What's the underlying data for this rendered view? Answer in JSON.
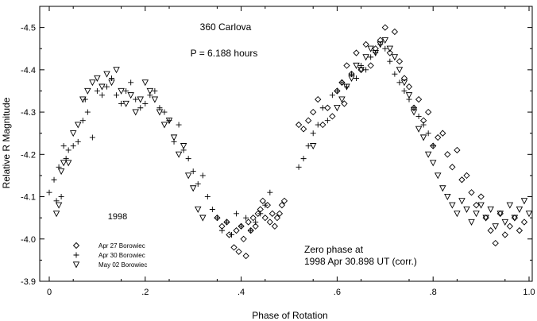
{
  "chart_data": {
    "type": "scatter",
    "title": "360 Carlova",
    "period_label": "P = 6.188 hours",
    "xlabel": "Phase of Rotation",
    "ylabel": "Relative R Magnitude",
    "xlim": [
      0,
      1
    ],
    "ylim": [
      -3.9,
      -4.55
    ],
    "x_ticks": [
      0,
      0.2,
      0.4,
      0.6,
      0.8,
      1.0
    ],
    "x_tick_labels": [
      "0",
      ".2",
      ".4",
      ".6",
      ".8",
      "1.0"
    ],
    "y_ticks": [
      -3.9,
      -4.0,
      -4.1,
      -4.2,
      -4.3,
      -4.4,
      -4.5
    ],
    "y_tick_labels": [
      "-3.9",
      "-4.0",
      "-4.1",
      "-4.2",
      "-4.3",
      "-4.4",
      "-4.5"
    ],
    "legend_title": "1998",
    "legend_placement": "bottom-left",
    "zero_phase_line1": "Zero phase at",
    "zero_phase_line2": "1998 Apr 30.898 UT (corr.)",
    "series": [
      {
        "name": "Apr 27 Borowiec",
        "marker": "diamond",
        "x": [
          0.35,
          0.36,
          0.37,
          0.375,
          0.385,
          0.39,
          0.395,
          0.4,
          0.405,
          0.41,
          0.415,
          0.42,
          0.425,
          0.43,
          0.435,
          0.44,
          0.445,
          0.45,
          0.455,
          0.46,
          0.465,
          0.47,
          0.475,
          0.48,
          0.485,
          0.49,
          0.52,
          0.53,
          0.54,
          0.55,
          0.56,
          0.57,
          0.58,
          0.59,
          0.6,
          0.61,
          0.615,
          0.62,
          0.63,
          0.64,
          0.65,
          0.66,
          0.67,
          0.68,
          0.69,
          0.7,
          0.71,
          0.72,
          0.73,
          0.74,
          0.75,
          0.76,
          0.77,
          0.78,
          0.79,
          0.8,
          0.81,
          0.82,
          0.83,
          0.84,
          0.85,
          0.86,
          0.87,
          0.88,
          0.89,
          0.9,
          0.91,
          0.92,
          0.93,
          0.94,
          0.95,
          0.96,
          0.97,
          0.98,
          0.99
        ],
        "y": [
          -4.05,
          -4.03,
          -4.04,
          -4.01,
          -3.98,
          -4.02,
          -3.97,
          -4.03,
          -4.0,
          -3.96,
          -4.04,
          -4.02,
          -4.05,
          -4.03,
          -4.06,
          -4.07,
          -4.09,
          -4.05,
          -4.08,
          -4.04,
          -4.06,
          -4.03,
          -4.05,
          -4.06,
          -4.08,
          -4.09,
          -4.27,
          -4.26,
          -4.28,
          -4.3,
          -4.33,
          -4.27,
          -4.31,
          -4.29,
          -4.35,
          -4.37,
          -4.32,
          -4.41,
          -4.39,
          -4.44,
          -4.4,
          -4.46,
          -4.41,
          -4.45,
          -4.47,
          -4.5,
          -4.44,
          -4.49,
          -4.42,
          -4.38,
          -4.36,
          -4.31,
          -4.33,
          -4.28,
          -4.3,
          -4.22,
          -4.24,
          -4.25,
          -4.2,
          -4.17,
          -4.21,
          -4.14,
          -4.15,
          -4.11,
          -4.08,
          -4.1,
          -4.05,
          -4.02,
          -3.99,
          -4.06,
          -4.01,
          -4.03,
          -4.05,
          -4.02,
          -4.04
        ]
      },
      {
        "name": "Apr 30 Borowiec",
        "marker": "plus",
        "x": [
          0.0,
          0.01,
          0.015,
          0.02,
          0.025,
          0.03,
          0.035,
          0.04,
          0.05,
          0.06,
          0.07,
          0.075,
          0.08,
          0.09,
          0.1,
          0.11,
          0.12,
          0.13,
          0.14,
          0.15,
          0.16,
          0.17,
          0.18,
          0.19,
          0.2,
          0.21,
          0.22,
          0.23,
          0.24,
          0.25,
          0.26,
          0.27,
          0.28,
          0.29,
          0.3,
          0.31,
          0.32,
          0.33,
          0.34,
          0.35,
          0.36,
          0.37,
          0.38,
          0.39,
          0.4,
          0.41,
          0.42,
          0.43,
          0.44,
          0.45,
          0.46,
          0.52,
          0.53,
          0.54,
          0.55,
          0.56,
          0.57,
          0.58,
          0.59,
          0.6,
          0.61,
          0.62,
          0.63,
          0.64,
          0.65,
          0.66,
          0.67,
          0.68,
          0.69,
          0.7,
          0.71,
          0.72,
          0.73,
          0.74,
          0.75,
          0.76,
          0.77,
          0.78,
          0.79,
          0.8
        ],
        "y": [
          -4.11,
          -4.14,
          -4.09,
          -4.17,
          -4.1,
          -4.22,
          -4.19,
          -4.21,
          -4.22,
          -4.23,
          -4.28,
          -4.33,
          -4.3,
          -4.24,
          -4.35,
          -4.34,
          -4.36,
          -4.38,
          -4.34,
          -4.32,
          -4.35,
          -4.37,
          -4.33,
          -4.31,
          -4.32,
          -4.34,
          -4.35,
          -4.31,
          -4.3,
          -4.28,
          -4.23,
          -4.27,
          -4.21,
          -4.19,
          -4.16,
          -4.13,
          -4.15,
          -4.1,
          -4.07,
          -4.05,
          -4.02,
          -4.04,
          -4.01,
          -4.06,
          -4.03,
          -4.05,
          -4.02,
          -4.04,
          -4.06,
          -4.08,
          -4.11,
          -4.17,
          -4.19,
          -4.22,
          -4.25,
          -4.27,
          -4.31,
          -4.28,
          -4.34,
          -4.35,
          -4.37,
          -4.36,
          -4.39,
          -4.38,
          -4.41,
          -4.4,
          -4.43,
          -4.44,
          -4.46,
          -4.45,
          -4.42,
          -4.39,
          -4.37,
          -4.35,
          -4.33,
          -4.31,
          -4.29,
          -4.27,
          -4.25,
          -4.22
        ]
      },
      {
        "name": "May 02 Borowiec",
        "marker": "triangle-down",
        "x": [
          0.015,
          0.02,
          0.025,
          0.03,
          0.04,
          0.05,
          0.06,
          0.07,
          0.08,
          0.09,
          0.1,
          0.11,
          0.12,
          0.13,
          0.14,
          0.15,
          0.16,
          0.17,
          0.18,
          0.19,
          0.2,
          0.21,
          0.22,
          0.23,
          0.24,
          0.25,
          0.26,
          0.27,
          0.28,
          0.29,
          0.3,
          0.31,
          0.32,
          0.55,
          0.6,
          0.61,
          0.62,
          0.63,
          0.64,
          0.65,
          0.66,
          0.67,
          0.68,
          0.69,
          0.7,
          0.71,
          0.72,
          0.73,
          0.74,
          0.75,
          0.76,
          0.77,
          0.78,
          0.79,
          0.8,
          0.81,
          0.82,
          0.83,
          0.84,
          0.85,
          0.86,
          0.87,
          0.88,
          0.89,
          0.9,
          0.91,
          0.92,
          0.93,
          0.94,
          0.95,
          0.96,
          0.97,
          0.98,
          0.99,
          1.0
        ],
        "y": [
          -4.06,
          -4.08,
          -4.16,
          -4.18,
          -4.18,
          -4.25,
          -4.27,
          -4.33,
          -4.35,
          -4.37,
          -4.38,
          -4.36,
          -4.39,
          -4.37,
          -4.4,
          -4.35,
          -4.32,
          -4.34,
          -4.3,
          -4.33,
          -4.37,
          -4.35,
          -4.33,
          -4.3,
          -4.27,
          -4.28,
          -4.24,
          -4.2,
          -4.22,
          -4.15,
          -4.12,
          -4.07,
          -4.05,
          -4.22,
          -4.31,
          -4.33,
          -4.36,
          -4.38,
          -4.41,
          -4.4,
          -4.43,
          -4.45,
          -4.44,
          -4.46,
          -4.47,
          -4.45,
          -4.43,
          -4.4,
          -4.37,
          -4.34,
          -4.3,
          -4.26,
          -4.24,
          -4.2,
          -4.18,
          -4.15,
          -4.12,
          -4.1,
          -4.08,
          -4.06,
          -4.09,
          -4.07,
          -4.04,
          -4.06,
          -4.08,
          -4.05,
          -4.07,
          -4.03,
          -4.06,
          -4.04,
          -4.08,
          -4.05,
          -4.07,
          -4.09,
          -4.06
        ]
      }
    ]
  }
}
